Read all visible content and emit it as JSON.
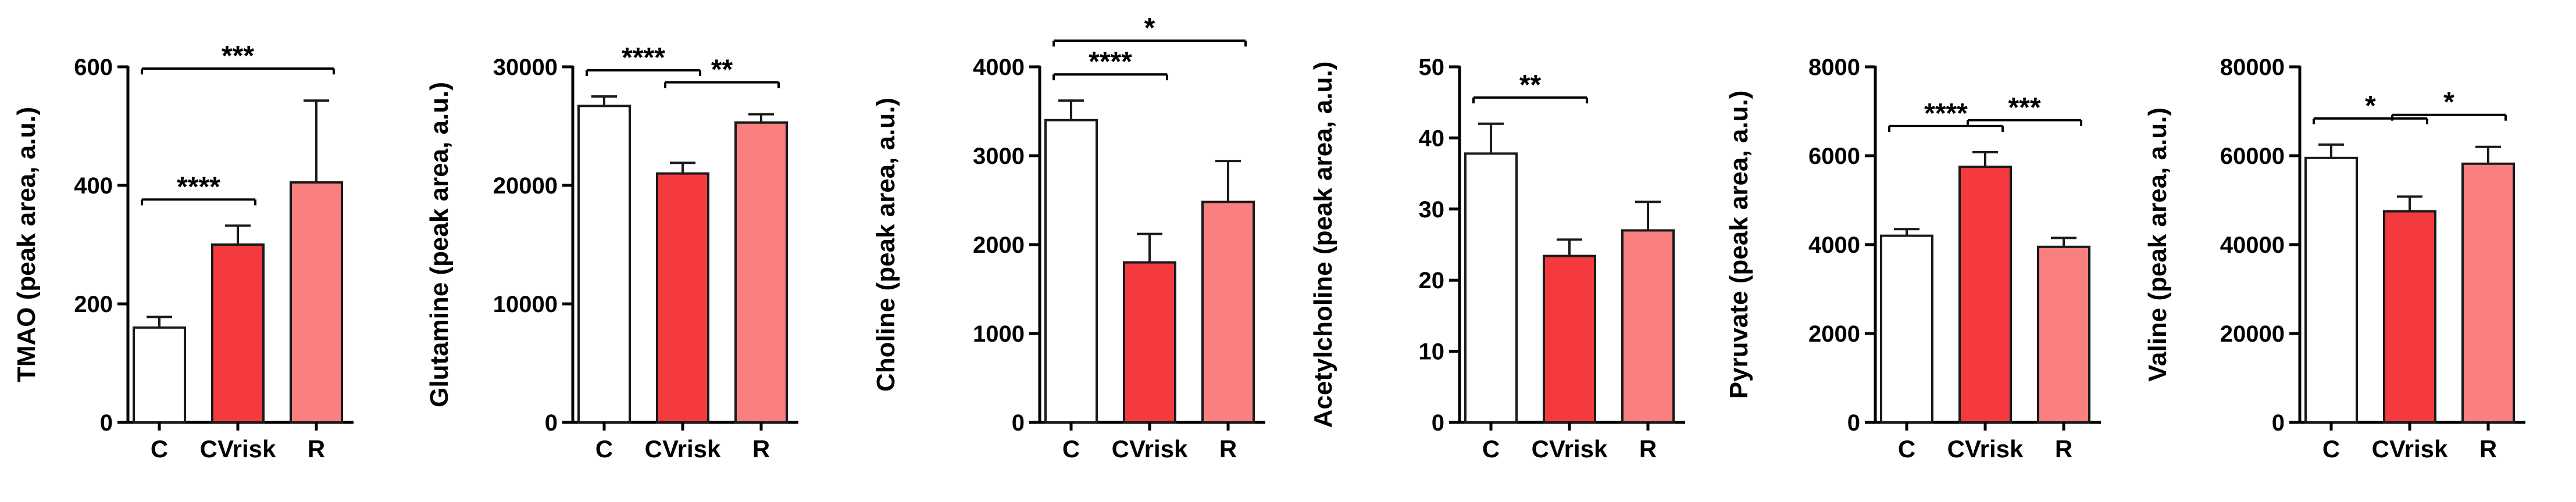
{
  "chart_data": [
    {
      "type": "bar",
      "title": "",
      "xlabel": "",
      "ylabel": "TMAO (peak area, a.u.)",
      "ylim": [
        0,
        600
      ],
      "yticks": [
        0,
        200,
        400,
        600
      ],
      "ytick_labels": [
        "0",
        "200",
        "400",
        "600"
      ],
      "categories": [
        "C",
        "CVrisk",
        "R"
      ],
      "values": [
        160,
        300,
        405
      ],
      "errors": [
        18,
        32,
        138
      ],
      "significance": [
        {
          "from": 0,
          "to": 1,
          "label": "****"
        },
        {
          "from": 0,
          "to": 2,
          "label": "***"
        }
      ]
    },
    {
      "type": "bar",
      "title": "",
      "xlabel": "",
      "ylabel": "Glutamine (peak area, a.u.)",
      "ylim": [
        0,
        30000
      ],
      "yticks": [
        0,
        10000,
        20000,
        30000
      ],
      "ytick_labels": [
        "0",
        "10000",
        "20000",
        "30000"
      ],
      "categories": [
        "C",
        "CVrisk",
        "R"
      ],
      "values": [
        26700,
        21000,
        25300
      ],
      "errors": [
        800,
        900,
        700
      ],
      "significance": [
        {
          "from": 0,
          "to": 1,
          "label": "****"
        },
        {
          "from": 1,
          "to": 2,
          "label": "**"
        }
      ]
    },
    {
      "type": "bar",
      "title": "",
      "xlabel": "",
      "ylabel": "Choline (peak area, a.u.)",
      "ylim": [
        0,
        4000
      ],
      "yticks": [
        0,
        1000,
        2000,
        3000,
        4000
      ],
      "ytick_labels": [
        "0",
        "1000",
        "2000",
        "3000",
        "4000"
      ],
      "categories": [
        "C",
        "CVrisk",
        "R"
      ],
      "values": [
        3400,
        1800,
        2480
      ],
      "errors": [
        220,
        320,
        460
      ],
      "significance": [
        {
          "from": 0,
          "to": 1,
          "label": "****"
        },
        {
          "from": 0,
          "to": 2,
          "label": "*"
        }
      ]
    },
    {
      "type": "bar",
      "title": "",
      "xlabel": "",
      "ylabel": "Acetylcholine (peak area, a.u.)",
      "ylim": [
        0,
        50
      ],
      "yticks": [
        0,
        10,
        20,
        30,
        40,
        50
      ],
      "ytick_labels": [
        "0",
        "10",
        "20",
        "30",
        "40",
        "50"
      ],
      "categories": [
        "C",
        "CVrisk",
        "R"
      ],
      "values": [
        37.8,
        23.4,
        27.0
      ],
      "errors": [
        4.2,
        2.3,
        4.0
      ],
      "significance": [
        {
          "from": 0,
          "to": 1,
          "label": "**"
        }
      ]
    },
    {
      "type": "bar",
      "title": "",
      "xlabel": "",
      "ylabel": "Pyruvate (peak area, a.u.)",
      "ylim": [
        0,
        8000
      ],
      "yticks": [
        0,
        2000,
        4000,
        6000,
        8000
      ],
      "ytick_labels": [
        "0",
        "2000",
        "4000",
        "6000",
        "8000"
      ],
      "categories": [
        "C",
        "CVrisk",
        "R"
      ],
      "values": [
        4200,
        5750,
        3950
      ],
      "errors": [
        150,
        330,
        200
      ],
      "significance": [
        {
          "from": 0,
          "to": 1,
          "label": "****"
        },
        {
          "from": 1,
          "to": 2,
          "label": "***"
        }
      ]
    },
    {
      "type": "bar",
      "title": "",
      "xlabel": "",
      "ylabel": "Valine (peak area, a.u.)",
      "ylim": [
        0,
        80000
      ],
      "yticks": [
        0,
        20000,
        40000,
        60000,
        80000
      ],
      "ytick_labels": [
        "0",
        "20000",
        "40000",
        "60000",
        "80000"
      ],
      "categories": [
        "C",
        "CVrisk",
        "R"
      ],
      "values": [
        59500,
        47500,
        58200
      ],
      "errors": [
        3000,
        3300,
        3800
      ],
      "significance": [
        {
          "from": 0,
          "to": 1,
          "label": "*"
        },
        {
          "from": 1,
          "to": 2,
          "label": "*"
        }
      ]
    }
  ],
  "colors": {
    "C": "#ffffff",
    "CVrisk": "#f43a3e",
    "R": "#fa8080",
    "axis": "#000000",
    "bar_outline": "#1a1a1a"
  }
}
